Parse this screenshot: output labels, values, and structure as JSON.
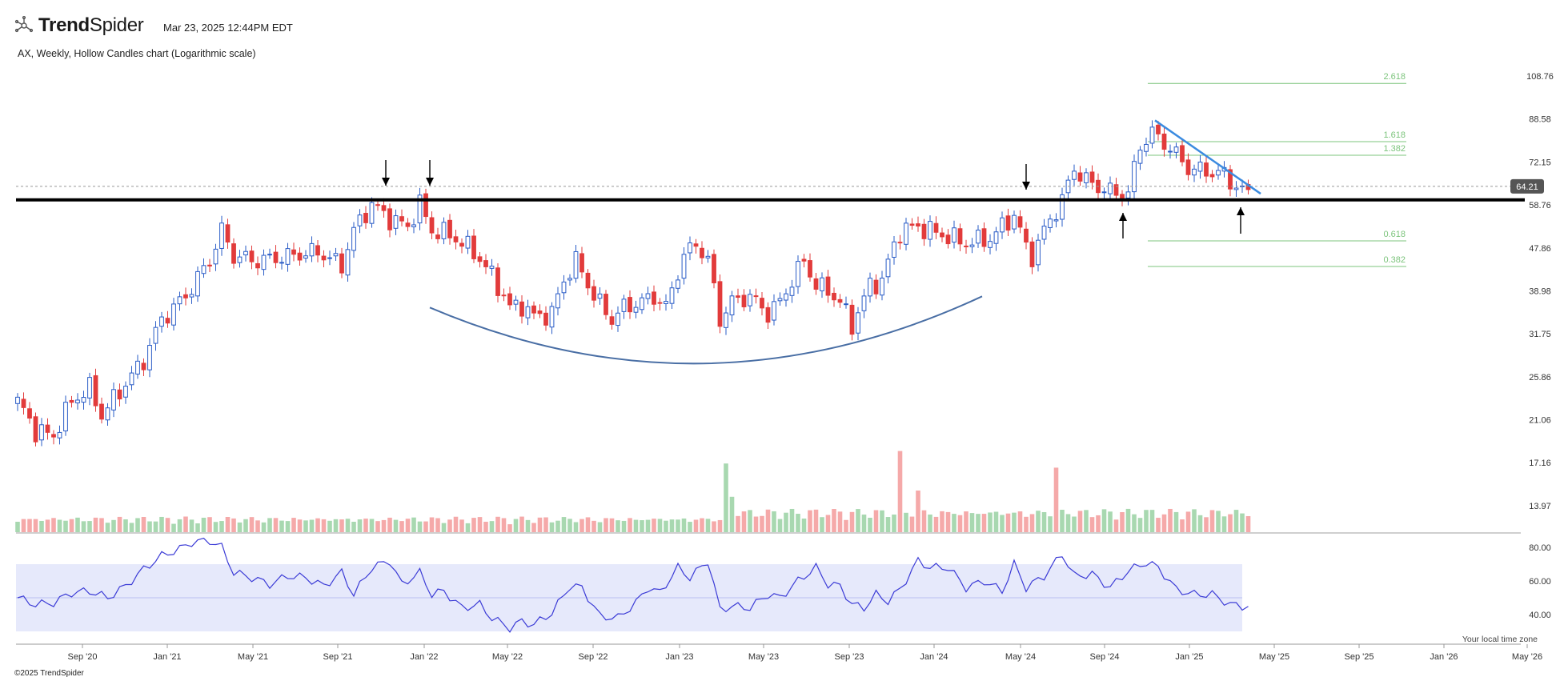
{
  "header": {
    "brand_bold": "Trend",
    "brand_light": "Spider",
    "timestamp": "Mar 23, 2025 12:44PM EDT",
    "subtitle": "AX, Weekly, Hollow Candles chart (Logarithmic scale)",
    "copyright": "©2025 TrendSpider",
    "timezone_note": "Your local time zone"
  },
  "colors": {
    "up": "#2a5cc7",
    "down": "#e23b3b",
    "vol_up": "#a8d8b0",
    "vol_down": "#f5a9a9",
    "rsi_line": "#3b3bd6",
    "rsi_band": "#e6e9fb",
    "support": "#000000",
    "trendline": "#3b8be0",
    "cup": "#4a6fa5",
    "fib": "#7cc47c",
    "last_price_bg": "#555555"
  },
  "chart_data": {
    "type": "candlestick",
    "symbol": "AX",
    "interval": "Weekly",
    "scale": "log",
    "last_price": "64.21",
    "y_ticks": [
      "108.76",
      "88.58",
      "72.15",
      "58.76",
      "47.86",
      "38.98",
      "31.75",
      "25.86",
      "21.06",
      "17.16",
      "13.97"
    ],
    "x_ticks": [
      "Sep '20",
      "Jan '21",
      "May '21",
      "Sep '21",
      "Jan '22",
      "May '22",
      "Sep '22",
      "Jan '23",
      "May '23",
      "Sep '23",
      "Jan '24",
      "May '24",
      "Sep '24",
      "Jan '25",
      "May '25",
      "Sep '25",
      "Jan '26",
      "May '26"
    ],
    "rsi_ticks": [
      "80.00",
      "60.00",
      "40.00"
    ],
    "rsi_band": [
      30,
      70
    ],
    "support_level": 60.2,
    "fib_levels": [
      {
        "label": "2.618",
        "value": 105
      },
      {
        "label": "1.618",
        "value": 79.5
      },
      {
        "label": "1.382",
        "value": 74.5
      },
      {
        "label": "0.618",
        "value": 49.5
      },
      {
        "label": "0.382",
        "value": 43.8
      }
    ],
    "price_path": [
      [
        0,
        23
      ],
      [
        3,
        20
      ],
      [
        6,
        19.5
      ],
      [
        9,
        23
      ],
      [
        12,
        24.5
      ],
      [
        14,
        21.5
      ],
      [
        18,
        25
      ],
      [
        21,
        28
      ],
      [
        24,
        34
      ],
      [
        28,
        38
      ],
      [
        32,
        45
      ],
      [
        34,
        52
      ],
      [
        36,
        46
      ],
      [
        40,
        45
      ],
      [
        45,
        46
      ],
      [
        50,
        47
      ],
      [
        54,
        44
      ],
      [
        56,
        52
      ],
      [
        59,
        59
      ],
      [
        62,
        55
      ],
      [
        65,
        53
      ],
      [
        67,
        59
      ],
      [
        69,
        52
      ],
      [
        72,
        51
      ],
      [
        76,
        47
      ],
      [
        79,
        42
      ],
      [
        82,
        36
      ],
      [
        84,
        36.5
      ],
      [
        86,
        34.5
      ],
      [
        89,
        35
      ],
      [
        91,
        41
      ],
      [
        93,
        45
      ],
      [
        96,
        38
      ],
      [
        99,
        34
      ],
      [
        101,
        36
      ],
      [
        104,
        37
      ],
      [
        106,
        38
      ],
      [
        108,
        36
      ],
      [
        111,
        46
      ],
      [
        113,
        49
      ],
      [
        115,
        45
      ],
      [
        117,
        34
      ],
      [
        119,
        37
      ],
      [
        122,
        38
      ],
      [
        125,
        35
      ],
      [
        127,
        37
      ],
      [
        131,
        45
      ],
      [
        133,
        40
      ],
      [
        135,
        39
      ],
      [
        137,
        37
      ],
      [
        139,
        33
      ],
      [
        142,
        40
      ],
      [
        144,
        41
      ],
      [
        147,
        52
      ],
      [
        150,
        53
      ],
      [
        154,
        51
      ],
      [
        158,
        49
      ],
      [
        162,
        50
      ],
      [
        164,
        53
      ],
      [
        166,
        56
      ],
      [
        168,
        48
      ],
      [
        169,
        46
      ],
      [
        171,
        52
      ],
      [
        174,
        60
      ],
      [
        176,
        70
      ],
      [
        178,
        66
      ],
      [
        180,
        64
      ],
      [
        183,
        62
      ],
      [
        185,
        62
      ],
      [
        187,
        78
      ],
      [
        189,
        83
      ],
      [
        192,
        77
      ],
      [
        195,
        70
      ],
      [
        198,
        69
      ],
      [
        201,
        68
      ],
      [
        203,
        64
      ],
      [
        205,
        62
      ]
    ],
    "rsi": [
      [
        0,
        50
      ],
      [
        3,
        46
      ],
      [
        6,
        47
      ],
      [
        9,
        53
      ],
      [
        12,
        54
      ],
      [
        15,
        50
      ],
      [
        18,
        57
      ],
      [
        21,
        67
      ],
      [
        24,
        75
      ],
      [
        27,
        79
      ],
      [
        29,
        83
      ],
      [
        32,
        84
      ],
      [
        34,
        80
      ],
      [
        36,
        65
      ],
      [
        39,
        62
      ],
      [
        42,
        58
      ],
      [
        45,
        63
      ],
      [
        48,
        62
      ],
      [
        51,
        57
      ],
      [
        54,
        65
      ],
      [
        56,
        52
      ],
      [
        59,
        68
      ],
      [
        62,
        72
      ],
      [
        64,
        58
      ],
      [
        67,
        65
      ],
      [
        69,
        52
      ],
      [
        71,
        54
      ],
      [
        74,
        44
      ],
      [
        77,
        46
      ],
      [
        79,
        38
      ],
      [
        82,
        32
      ],
      [
        84,
        36
      ],
      [
        86,
        34
      ],
      [
        89,
        41
      ],
      [
        92,
        57
      ],
      [
        94,
        56
      ],
      [
        97,
        39
      ],
      [
        100,
        38
      ],
      [
        103,
        47
      ],
      [
        105,
        56
      ],
      [
        107,
        53
      ],
      [
        110,
        68
      ],
      [
        112,
        62
      ],
      [
        115,
        72
      ],
      [
        117,
        43
      ],
      [
        119,
        45
      ],
      [
        122,
        44
      ],
      [
        125,
        52
      ],
      [
        127,
        50
      ],
      [
        130,
        60
      ],
      [
        133,
        68
      ],
      [
        135,
        58
      ],
      [
        137,
        57
      ],
      [
        139,
        46
      ],
      [
        141,
        44
      ],
      [
        143,
        52
      ],
      [
        145,
        48
      ],
      [
        147,
        55
      ],
      [
        150,
        72
      ],
      [
        152,
        68
      ],
      [
        155,
        68
      ],
      [
        158,
        56
      ],
      [
        161,
        60
      ],
      [
        164,
        54
      ],
      [
        166,
        70
      ],
      [
        168,
        56
      ],
      [
        171,
        63
      ],
      [
        174,
        76
      ],
      [
        176,
        63
      ],
      [
        179,
        64
      ],
      [
        182,
        56
      ],
      [
        185,
        66
      ],
      [
        188,
        71
      ],
      [
        190,
        68
      ],
      [
        193,
        55
      ],
      [
        196,
        52
      ],
      [
        199,
        52
      ],
      [
        202,
        46
      ],
      [
        204,
        45
      ]
    ],
    "annotations": {
      "down_arrows": [
        "Nov '21",
        "Jan '22",
        "May '24"
      ],
      "up_arrows": [
        "Oct '24",
        "Mar '25"
      ]
    }
  }
}
